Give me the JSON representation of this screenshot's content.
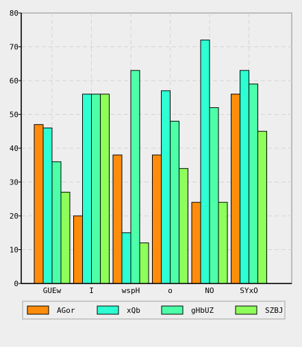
{
  "chart_data": {
    "type": "bar",
    "title": "",
    "xlabel": "",
    "ylabel": "",
    "categories": [
      "GUEw",
      "I",
      "wspH",
      "o",
      "NO",
      "SYxO"
    ],
    "ylim": [
      0,
      80
    ],
    "yticks": [
      0,
      10,
      20,
      30,
      40,
      50,
      60,
      70,
      80
    ],
    "grid": true,
    "legend_position": "bottom",
    "series": [
      {
        "name": "AGor",
        "color": "#ff8c0a",
        "values": [
          47,
          20,
          38,
          38,
          24,
          56
        ]
      },
      {
        "name": "xQb",
        "color": "#2effd2",
        "values": [
          46,
          56,
          15,
          57,
          72,
          63
        ]
      },
      {
        "name": "gHbUZ",
        "color": "#4dffa8",
        "values": [
          36,
          56,
          63,
          48,
          52,
          59
        ]
      },
      {
        "name": "SZBJ",
        "color": "#8eff5a",
        "values": [
          27,
          56,
          12,
          34,
          24,
          45
        ]
      }
    ]
  }
}
